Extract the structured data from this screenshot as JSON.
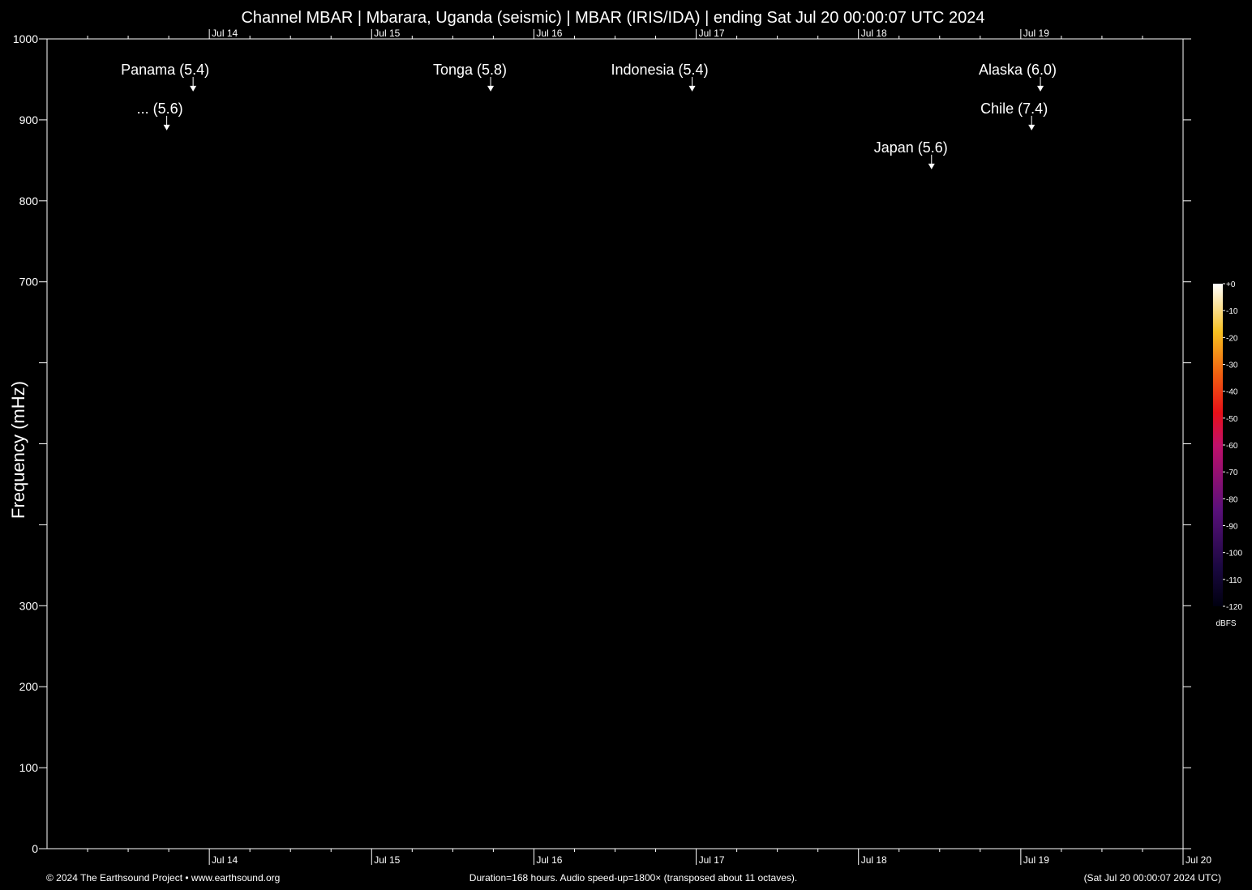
{
  "chart_data": {
    "type": "spectrogram",
    "title": "Channel MBAR | Mbarara, Uganda (seismic) | MBAR (IRIS/IDA) | ending Sat Jul 20 00:00:07 UTC 2024",
    "y_label": "Frequency (mHz)",
    "ylim": [
      0,
      1000
    ],
    "yticks": [
      0,
      100,
      200,
      300,
      {
        "value": 400,
        "label": null
      },
      {
        "value": 500,
        "label": null
      },
      {
        "value": 600,
        "label": null
      },
      700,
      800,
      900,
      1000
    ],
    "xlim": [
      0,
      168
    ],
    "xticks": [
      {
        "value": 24,
        "label": "Jul 14"
      },
      {
        "value": 48,
        "label": "Jul 15"
      },
      {
        "value": 72,
        "label": "Jul 16"
      },
      {
        "value": 96,
        "label": "Jul 17"
      },
      {
        "value": 120,
        "label": "Jul 18"
      },
      {
        "value": 144,
        "label": "Jul 19"
      },
      {
        "value": 168,
        "label": "Jul 20"
      }
    ],
    "events": [
      {
        "label": "Panama (5.4)",
        "x": 21.6,
        "y": 935
      },
      {
        "label": "... (5.6)",
        "x": 17.7,
        "y": 887
      },
      {
        "label": "Tonga (5.8)",
        "x": 65.6,
        "y": 935
      },
      {
        "label": "Indonesia (5.4)",
        "x": 95.4,
        "y": 935
      },
      {
        "label": "Japan (5.6)",
        "x": 130.8,
        "y": 839
      },
      {
        "label": "Alaska (6.0)",
        "x": 146.9,
        "y": 935
      },
      {
        "label": "Chile (7.4)",
        "x": 145.6,
        "y": 887
      }
    ],
    "colorbar": {
      "lim": [
        -120,
        0
      ],
      "unit": "dBFS",
      "ticks": [
        {
          "value": 0,
          "label": "+0"
        },
        -10,
        -20,
        -30,
        -40,
        -50,
        -60,
        -70,
        -80,
        -90,
        -100,
        -110,
        -120
      ]
    },
    "footer": {
      "left": "© 2024 The Earthsound Project • www.earthsound.org",
      "center": "Duration=168 hours. Audio speed-up=1800× (transposed about 11 octaves).",
      "right": "(Sat Jul 20 00:00:07 2024 UTC)"
    }
  }
}
